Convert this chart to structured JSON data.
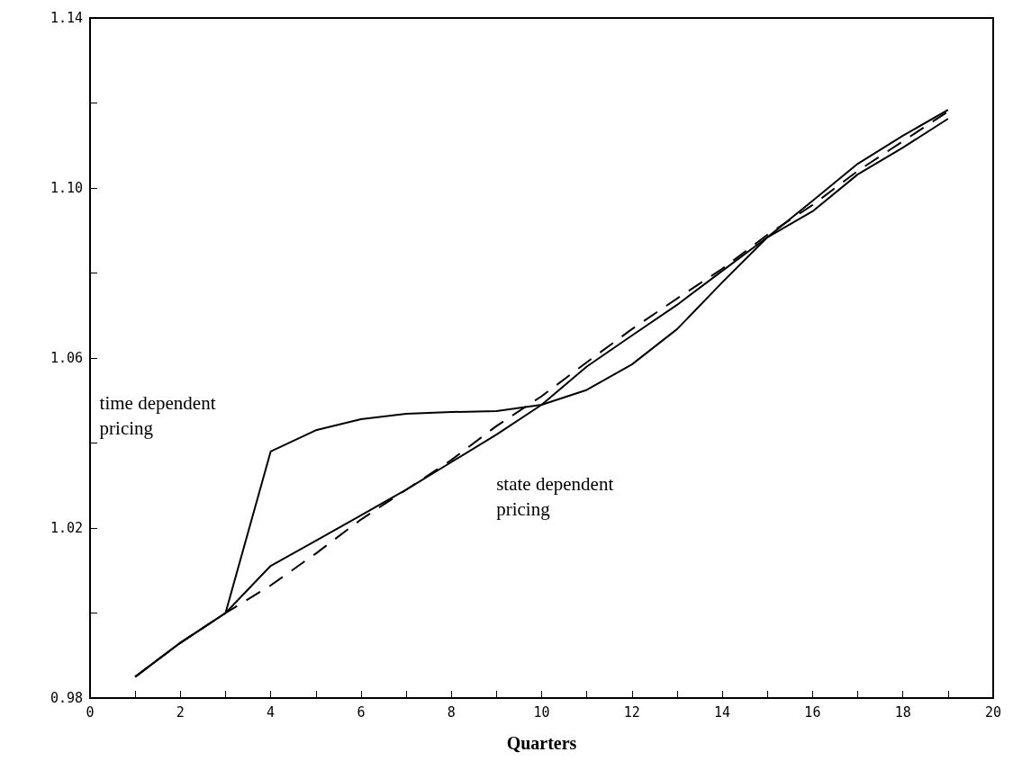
{
  "chart_data": {
    "type": "line",
    "xlabel": "Quarters",
    "x": [
      1,
      2,
      3,
      4,
      5,
      6,
      7,
      8,
      9,
      10,
      11,
      12,
      13,
      14,
      15,
      16,
      17,
      18,
      19
    ],
    "series": [
      {
        "name": "time dependent pricing",
        "color": "#000000",
        "line_style": "solid",
        "values": [
          0.985,
          0.993,
          1.0,
          1.038,
          1.043,
          1.0456,
          1.0469,
          1.0473,
          1.0475,
          1.049,
          1.0525,
          1.0585,
          1.0668,
          1.0778,
          1.0884,
          1.097,
          1.1057,
          1.1123,
          1.1184
        ]
      },
      {
        "name": "state dependent pricing",
        "color": "#000000",
        "line_style": "solid",
        "values": [
          0.985,
          0.993,
          1.0,
          1.0111,
          1.017,
          1.023,
          1.029,
          1.0355,
          1.042,
          1.049,
          1.058,
          1.0653,
          1.0725,
          1.0805,
          1.0884,
          1.0945,
          1.1032,
          1.1095,
          1.1163
        ]
      },
      {
        "color": "#000000",
        "line_style": "dashed",
        "values": [
          0.985,
          0.993,
          1.0,
          1.0065,
          1.014,
          1.022,
          1.029,
          1.036,
          1.044,
          1.051,
          1.059,
          1.0668,
          1.074,
          1.081,
          1.089,
          1.096,
          1.104,
          1.111,
          1.118
        ]
      }
    ],
    "xlim": [
      0,
      20
    ],
    "xticks": [
      0,
      {
        "value": 1,
        "label": null
      },
      2,
      {
        "value": 3,
        "label": null
      },
      4,
      {
        "value": 5,
        "label": null
      },
      6,
      {
        "value": 7,
        "label": null
      },
      8,
      {
        "value": 9,
        "label": null
      },
      10,
      {
        "value": 11,
        "label": null
      },
      12,
      {
        "value": 13,
        "label": null
      },
      14,
      {
        "value": 15,
        "label": null
      },
      16,
      {
        "value": 17,
        "label": null
      },
      18,
      {
        "value": 19,
        "label": null
      },
      20
    ],
    "ylim": [
      0.98,
      1.14
    ],
    "yticks": [
      0.98,
      {
        "value": 1.0,
        "label": null
      },
      1.02,
      {
        "value": 1.04,
        "label": null
      },
      1.06,
      {
        "value": 1.08,
        "label": null
      },
      {
        "value": 1.1,
        "label": "1.10"
      },
      {
        "value": 1.12,
        "label": null
      },
      1.14
    ],
    "grid": false,
    "marker": "none"
  }
}
